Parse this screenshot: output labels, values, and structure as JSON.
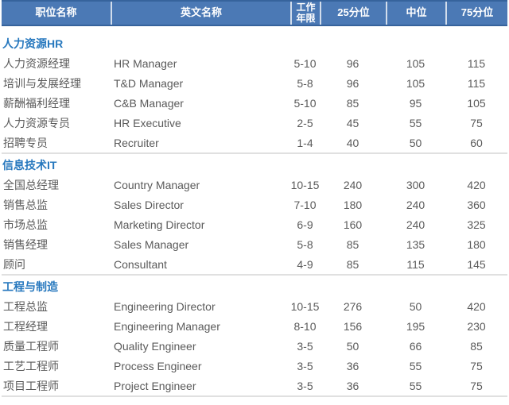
{
  "chart_data": {
    "type": "table",
    "columns": [
      "职位名称",
      "英文名称",
      "工作年限",
      "25分位",
      "中位",
      "75分位"
    ],
    "sections": [
      {
        "title": "人力资源HR",
        "rows": [
          {
            "cn": "人力资源经理",
            "en": "HR Manager",
            "years": "5-10",
            "p25": "96",
            "p50": "105",
            "p75": "115"
          },
          {
            "cn": "培训与发展经理",
            "en": "T&D Manager",
            "years": "5-8",
            "p25": "96",
            "p50": "105",
            "p75": "115"
          },
          {
            "cn": "薪酬福利经理",
            "en": "C&B Manager",
            "years": "5-10",
            "p25": "85",
            "p50": "95",
            "p75": "105"
          },
          {
            "cn": "人力资源专员",
            "en": "HR Executive",
            "years": "2-5",
            "p25": "45",
            "p50": "55",
            "p75": "75"
          },
          {
            "cn": "招聘专员",
            "en": "Recruiter",
            "years": "1-4",
            "p25": "40",
            "p50": "50",
            "p75": "60"
          }
        ]
      },
      {
        "title": "信息技术IT",
        "rows": [
          {
            "cn": "全国总经理",
            "en": "Country Manager",
            "years": "10-15",
            "p25": "240",
            "p50": "300",
            "p75": "420"
          },
          {
            "cn": "销售总监",
            "en": "Sales Director",
            "years": "7-10",
            "p25": "180",
            "p50": "240",
            "p75": "360"
          },
          {
            "cn": "市场总监",
            "en": "Marketing Director",
            "years": "6-9",
            "p25": "160",
            "p50": "240",
            "p75": "325"
          },
          {
            "cn": "销售经理",
            "en": "Sales Manager",
            "years": "5-8",
            "p25": "85",
            "p50": "135",
            "p75": "180"
          },
          {
            "cn": "顾问",
            "en": "Consultant",
            "years": "4-9",
            "p25": "85",
            "p50": "115",
            "p75": "145"
          }
        ]
      },
      {
        "title": "工程与制造",
        "rows": [
          {
            "cn": "工程总监",
            "en": "Engineering Director",
            "years": "10-15",
            "p25": "276",
            "p50": "50",
            "p75": "420"
          },
          {
            "cn": "工程经理",
            "en": "Engineering Manager",
            "years": "8-10",
            "p25": "156",
            "p50": "195",
            "p75": "230"
          },
          {
            "cn": "质量工程师",
            "en": "Quality Engineer",
            "years": "3-5",
            "p25": "50",
            "p50": "66",
            "p75": "85"
          },
          {
            "cn": "工艺工程师",
            "en": "Process Engineer",
            "years": "3-5",
            "p25": "36",
            "p50": "55",
            "p75": "75"
          },
          {
            "cn": "项目工程师",
            "en": "Project Engineer",
            "years": "3-5",
            "p25": "36",
            "p50": "55",
            "p75": "75"
          }
        ]
      }
    ]
  },
  "colors": {
    "header_bg": "#4B79B5",
    "header_border": "#36639C",
    "section_title": "#2778BE",
    "body_text": "#5A5A5A",
    "divider": "#E0E0E0"
  }
}
